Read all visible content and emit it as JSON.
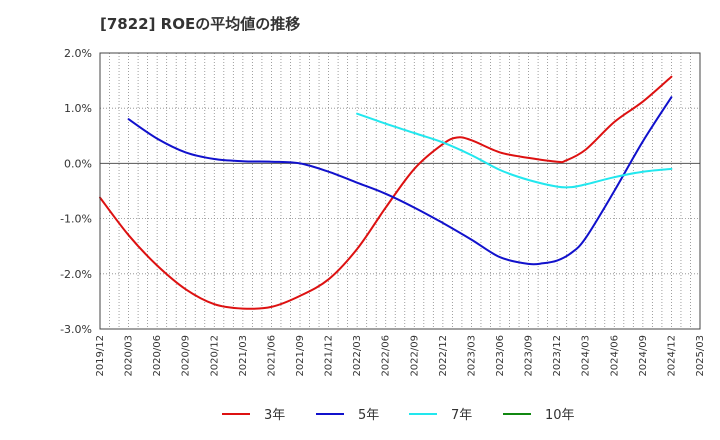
{
  "title": "[7822]  ROEの平均値の推移",
  "colors": {
    "s3": "#dd1111",
    "s5": "#1111cc",
    "s7": "#22e7ee",
    "s10": "#118811",
    "grid": "#888888",
    "axis": "#444444"
  },
  "chart_data": {
    "type": "line",
    "title": "[7822]  ROEの平均値の推移",
    "ylim": [
      -3.0,
      2.0
    ],
    "yticks": [
      2.0,
      1.0,
      0.0,
      -1.0,
      -2.0,
      -3.0
    ],
    "ytick_labels": [
      "2.0%",
      "1.0%",
      "0.0%",
      "-1.0%",
      "-2.0%",
      "-3.0%"
    ],
    "x_labels": [
      "2019/12",
      "2020/03",
      "2020/06",
      "2020/09",
      "2020/12",
      "2021/03",
      "2021/06",
      "2021/09",
      "2021/12",
      "2022/03",
      "2022/06",
      "2022/09",
      "2022/12",
      "2023/03",
      "2023/06",
      "2023/09",
      "2023/12",
      "2024/03",
      "2024/06",
      "2024/09",
      "2024/12",
      "2025/03"
    ],
    "legend": [
      "3年",
      "5年",
      "7年",
      "10年"
    ],
    "series": [
      {
        "name": "3年",
        "color_key": "s3",
        "x": [
          0,
          1,
          2,
          3,
          4,
          5,
          6,
          7,
          8,
          9,
          10,
          11,
          12,
          12.5,
          13,
          14,
          15,
          16,
          16.3,
          17,
          18,
          19,
          20
        ],
        "values": [
          -0.62,
          -1.3,
          -1.85,
          -2.28,
          -2.55,
          -2.63,
          -2.6,
          -2.4,
          -2.1,
          -1.55,
          -0.8,
          -0.1,
          0.35,
          0.47,
          0.42,
          0.2,
          0.1,
          0.03,
          0.05,
          0.25,
          0.75,
          1.12,
          1.57
        ]
      },
      {
        "name": "5年",
        "color_key": "s5",
        "x": [
          1,
          2,
          3,
          4,
          5,
          6,
          7,
          8,
          9,
          10,
          11,
          12,
          13,
          14,
          15,
          15.5,
          16,
          16.5,
          17,
          18,
          19,
          20
        ],
        "values": [
          0.8,
          0.45,
          0.2,
          0.08,
          0.04,
          0.03,
          0.0,
          -0.15,
          -0.35,
          -0.55,
          -0.8,
          -1.08,
          -1.38,
          -1.7,
          -1.82,
          -1.81,
          -1.76,
          -1.62,
          -1.35,
          -0.5,
          0.4,
          1.2
        ]
      },
      {
        "name": "7年",
        "color_key": "s7",
        "x": [
          9,
          10,
          11,
          12,
          13,
          14,
          15,
          16,
          16.5,
          17,
          18,
          19,
          20
        ],
        "values": [
          0.9,
          0.72,
          0.55,
          0.38,
          0.15,
          -0.12,
          -0.3,
          -0.42,
          -0.43,
          -0.38,
          -0.25,
          -0.15,
          -0.1
        ]
      },
      {
        "name": "10年",
        "color_key": "s10",
        "x": [],
        "values": []
      }
    ]
  }
}
